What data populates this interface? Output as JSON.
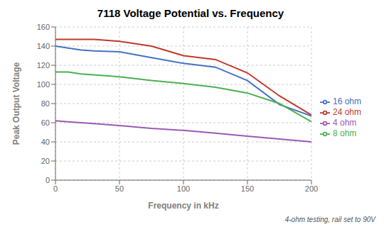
{
  "chart_data": {
    "type": "line",
    "title": "7118 Voltage Potential vs. Frequency",
    "xlabel": "Frequency in kHz",
    "ylabel": "Peak Output Voltage",
    "annotation": "4-ohm testing, rail set to 90V",
    "x": [
      0,
      10,
      20,
      30,
      50,
      75,
      100,
      125,
      150,
      175,
      200
    ],
    "series": [
      {
        "name": "24 ohm",
        "color": "#c0392b",
        "values": [
          147,
          147,
          147,
          147,
          145,
          140,
          130,
          126,
          112,
          88,
          68
        ]
      },
      {
        "name": "16 ohm",
        "color": "#4472c4",
        "values": [
          140,
          138,
          136,
          135,
          134,
          128,
          122,
          118,
          104,
          79,
          67
        ]
      },
      {
        "name": "8 ohm",
        "color": "#4caf50",
        "values": [
          113,
          113,
          111,
          110,
          108,
          104,
          101,
          97,
          91,
          80,
          61
        ]
      },
      {
        "name": "4 ohm",
        "color": "#9b59b6",
        "values": [
          62,
          61,
          60,
          59,
          57,
          54,
          52,
          49,
          46,
          43,
          40
        ]
      }
    ],
    "xlim": [
      0,
      200
    ],
    "ylim": [
      0,
      160
    ],
    "xticks": [
      0,
      50,
      100,
      150,
      200
    ],
    "yticks": [
      0,
      20,
      40,
      60,
      80,
      100,
      120,
      140,
      160
    ],
    "grid": true,
    "legend": "right"
  }
}
